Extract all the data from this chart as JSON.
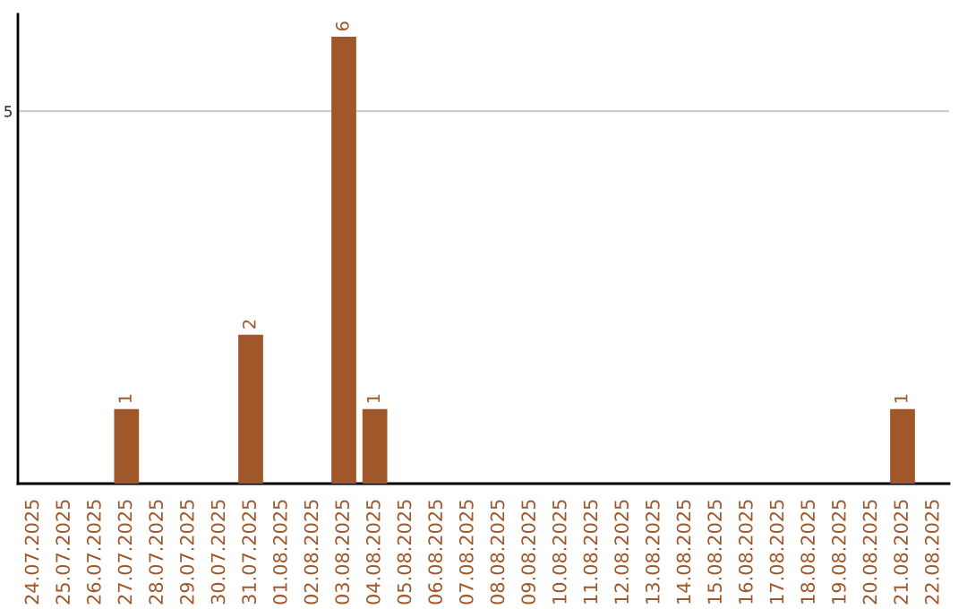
{
  "chart_data": {
    "type": "bar",
    "categories": [
      "24.07.2025",
      "25.07.2025",
      "26.07.2025",
      "27.07.2025",
      "28.07.2025",
      "29.07.2025",
      "30.07.2025",
      "31.07.2025",
      "01.08.2025",
      "02.08.2025",
      "03.08.2025",
      "04.08.2025",
      "05.08.2025",
      "06.08.2025",
      "07.08.2025",
      "08.08.2025",
      "09.08.2025",
      "10.08.2025",
      "11.08.2025",
      "12.08.2025",
      "13.08.2025",
      "14.08.2025",
      "15.08.2025",
      "16.08.2025",
      "17.08.2025",
      "18.08.2025",
      "19.08.2025",
      "20.08.2025",
      "21.08.2025",
      "22.08.2025"
    ],
    "values": [
      0,
      0,
      0,
      1,
      0,
      0,
      0,
      2,
      0,
      0,
      6,
      1,
      0,
      0,
      0,
      0,
      0,
      0,
      0,
      0,
      0,
      0,
      0,
      0,
      0,
      0,
      0,
      0,
      1,
      0
    ],
    "value_labels": [
      null,
      null,
      null,
      "1",
      null,
      null,
      null,
      "2",
      null,
      null,
      "6",
      "1",
      null,
      null,
      null,
      null,
      null,
      null,
      null,
      null,
      null,
      null,
      null,
      null,
      null,
      null,
      null,
      null,
      "1",
      null
    ],
    "color": "#a0572a",
    "ylim": [
      0,
      6.3
    ],
    "yticks": [
      5
    ],
    "grid": "y",
    "legend": false
  }
}
